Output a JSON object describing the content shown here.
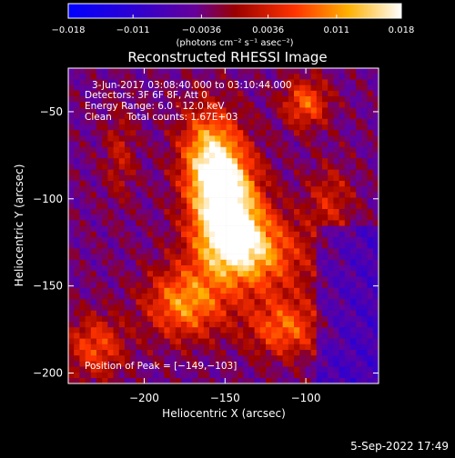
{
  "chart_data": {
    "type": "heatmap",
    "title": "Reconstructed RHESSI Image",
    "xlabel": "Heliocentric X (arcsec)",
    "ylabel": "Heliocentric Y (arcsec)",
    "xlim": [
      -247,
      -55
    ],
    "ylim": [
      -206,
      -25
    ],
    "x_ticks": [
      -200,
      -150,
      -100
    ],
    "y_ticks": [
      -200,
      -150,
      -100,
      -50
    ],
    "x_tick_labels": [
      "−200",
      "−150",
      "−100"
    ],
    "y_tick_labels": [
      "−200",
      "−150",
      "−100",
      "−50"
    ],
    "colorbar": {
      "range": [
        -0.018,
        0.018
      ],
      "ticks": [
        -0.018,
        -0.011,
        -0.0036,
        0.0036,
        0.011,
        0.018
      ],
      "tick_labels": [
        "−0.018",
        "−0.011",
        "−0.0036",
        "0.0036",
        "0.011",
        "0.018"
      ],
      "units_label": "(photons cm⁻² s⁻¹ asec⁻²)"
    },
    "annotations": {
      "time_range": "3-Jun-2017 03:08:40.000 to 03:10:44.000",
      "detectors": "Detectors: 3F 6F 8F, Att 0",
      "energy_range": "Energy Range: 6.0 - 12.0 keV",
      "method_counts": "Clean     Total counts: 1.67E+03",
      "peak_position": "Position of Peak = [−149,−103]"
    },
    "peak": [
      -149,
      -103
    ],
    "grid": false
  },
  "footer": {
    "date": "5-Sep-2022 17:49"
  }
}
